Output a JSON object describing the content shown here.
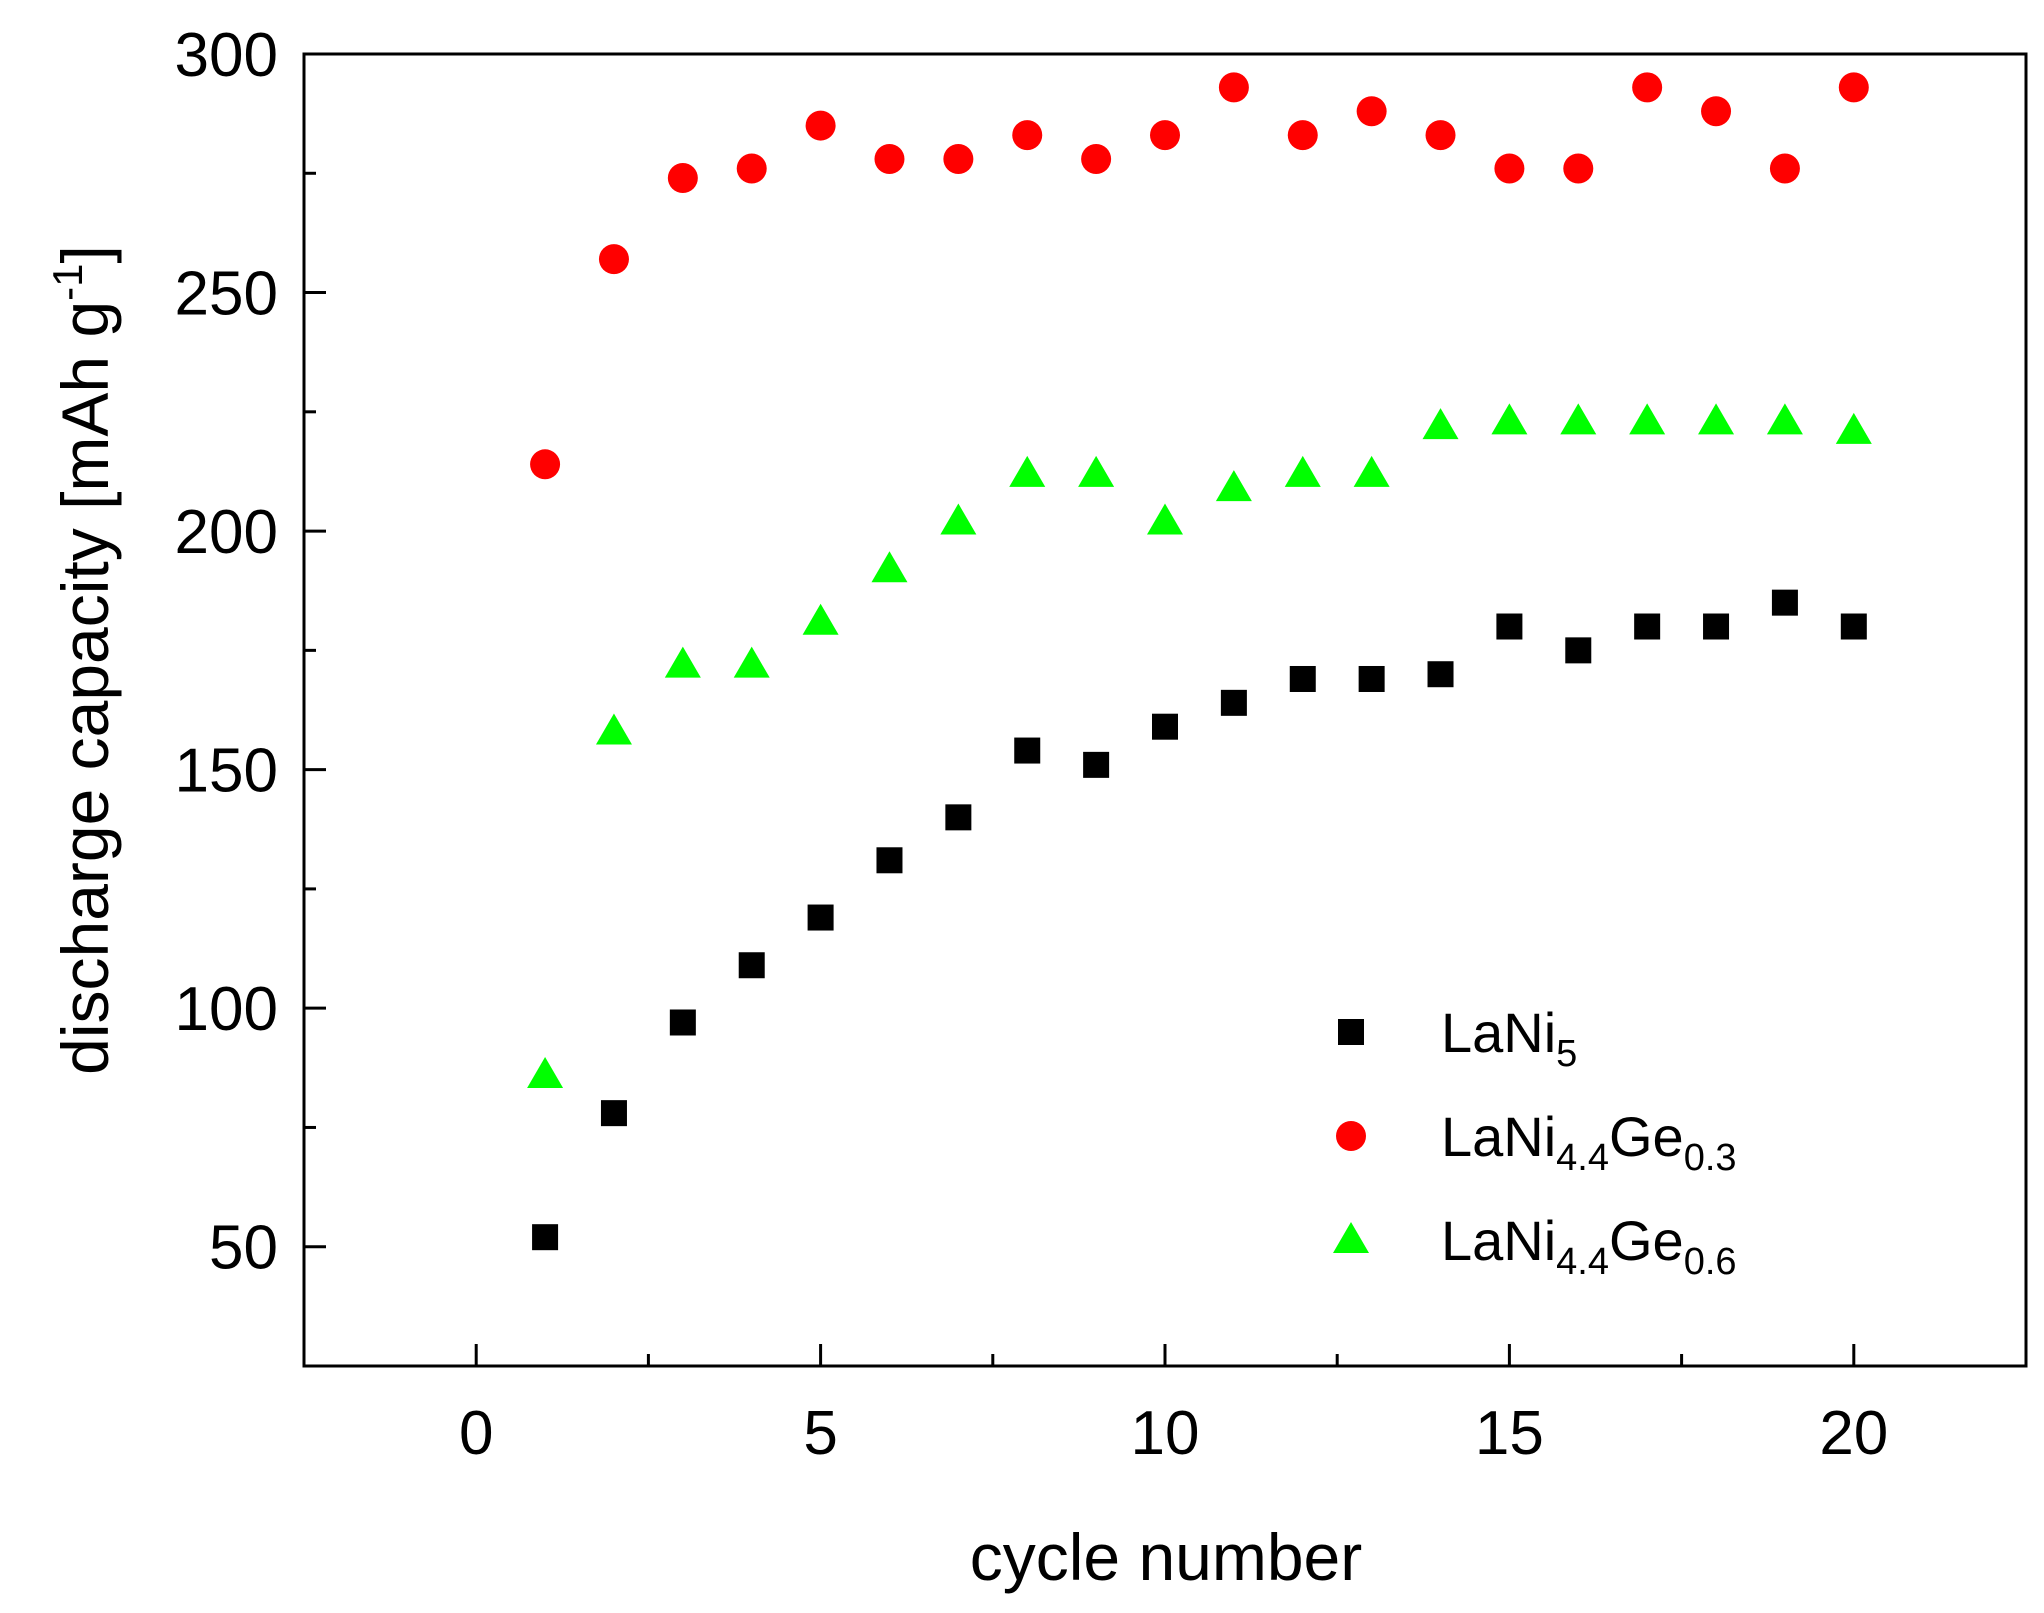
{
  "chart_data": {
    "type": "scatter",
    "title": "",
    "xlabel": "cycle number",
    "ylabel": {
      "text": "discharge capacity [mAh g",
      "sup": "-1",
      "close": "]"
    },
    "xlim": [
      -2.5,
      22.5
    ],
    "ylim": [
      25,
      300
    ],
    "xticks": [
      0,
      5,
      10,
      15,
      20
    ],
    "yticks": [
      50,
      100,
      150,
      200,
      250,
      300
    ],
    "xtick_labels": [
      "0",
      "5",
      "10",
      "15",
      "20"
    ],
    "ytick_labels": [
      "50",
      "100",
      "150",
      "200",
      "250",
      "300"
    ],
    "grid": false,
    "legend_position": "bottom-right",
    "x": [
      1,
      2,
      3,
      4,
      5,
      6,
      7,
      8,
      9,
      10,
      11,
      12,
      13,
      14,
      15,
      16,
      17,
      18,
      19,
      20
    ],
    "series": [
      {
        "name": "LaNi5",
        "legend": [
          {
            "t": "LaNi",
            "s": ""
          },
          {
            "t": "5",
            "s": "sub"
          }
        ],
        "marker": "square",
        "color": "#000000",
        "values": [
          52,
          78,
          97,
          109,
          119,
          131,
          140,
          154,
          151,
          159,
          164,
          169,
          169,
          170,
          180,
          175,
          180,
          180,
          185,
          180
        ]
      },
      {
        "name": "LaNi4.4Ge0.3",
        "legend": [
          {
            "t": "LaNi",
            "s": ""
          },
          {
            "t": "4.4",
            "s": "sub"
          },
          {
            "t": "Ge",
            "s": ""
          },
          {
            "t": "0.3",
            "s": "sub"
          }
        ],
        "marker": "circle",
        "color": "#ff0000",
        "values": [
          214,
          257,
          274,
          276,
          285,
          278,
          278,
          283,
          278,
          283,
          293,
          283,
          288,
          283,
          276,
          276,
          293,
          288,
          276,
          293
        ]
      },
      {
        "name": "LaNi4.4Ge0.6",
        "legend": [
          {
            "t": "LaNi",
            "s": ""
          },
          {
            "t": "4.4",
            "s": "sub"
          },
          {
            "t": "Ge",
            "s": ""
          },
          {
            "t": "0.6",
            "s": "sub"
          }
        ],
        "marker": "triangle",
        "color": "#00ff00",
        "values": [
          86,
          158,
          172,
          172,
          181,
          192,
          202,
          212,
          212,
          202,
          209,
          212,
          212,
          222,
          223,
          223,
          223,
          223,
          223,
          221
        ]
      }
    ]
  }
}
